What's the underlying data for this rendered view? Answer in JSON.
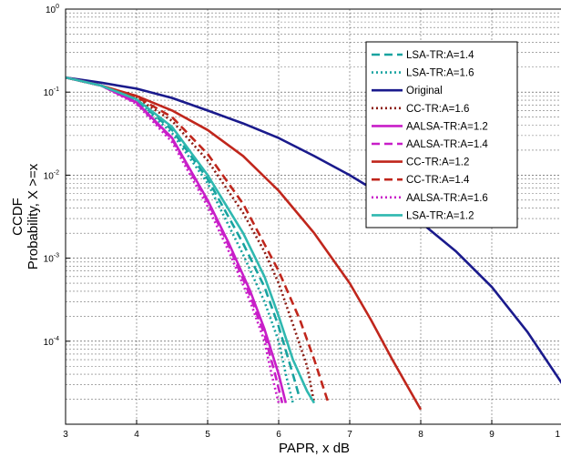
{
  "chart_data": {
    "type": "line",
    "title": "",
    "xlabel": "PAPR, x dB",
    "ylabel": [
      "CCDF",
      "Probability, X >=x"
    ],
    "x_scale": "linear",
    "y_scale": "log",
    "xlim": [
      3,
      10
    ],
    "ylim": [
      1e-05,
      1
    ],
    "xticks": [
      "3",
      "4",
      "5",
      "6",
      "7",
      "8",
      "9",
      "1"
    ],
    "yticks": [
      {
        "base": "10",
        "exp": "0"
      },
      {
        "base": "10",
        "exp": "-1"
      },
      {
        "base": "10",
        "exp": "-2"
      },
      {
        "base": "10",
        "exp": "-3"
      },
      {
        "base": "10",
        "exp": "-4"
      }
    ],
    "grid": true,
    "legend_position": "top-right",
    "series": [
      {
        "name": "LSA-TR:A=1.4",
        "color": "#18a3a0",
        "dash": "dashed",
        "x": [
          3.0,
          3.5,
          4.0,
          4.5,
          5.0,
          5.5,
          5.8,
          6.0,
          6.2,
          6.3
        ],
        "y": [
          0.15,
          0.12,
          0.08,
          0.035,
          0.009,
          0.0015,
          0.00045,
          0.00015,
          4e-05,
          2e-05
        ]
      },
      {
        "name": "LSA-TR:A=1.6",
        "color": "#18a3a0",
        "dash": "dotted",
        "x": [
          3.0,
          3.5,
          4.0,
          4.5,
          5.0,
          5.5,
          5.8,
          6.0,
          6.1,
          6.2
        ],
        "y": [
          0.15,
          0.12,
          0.078,
          0.032,
          0.008,
          0.0011,
          0.0003,
          0.0001,
          4e-05,
          1.8e-05
        ]
      },
      {
        "name": "Original",
        "color": "#1a1a8c",
        "dash": "solid",
        "x": [
          3.0,
          3.5,
          4.0,
          4.5,
          5.0,
          5.5,
          6.0,
          6.5,
          7.0,
          7.5,
          8.0,
          8.5,
          9.0,
          9.5,
          10.0
        ],
        "y": [
          0.15,
          0.13,
          0.11,
          0.085,
          0.06,
          0.042,
          0.028,
          0.017,
          0.01,
          0.0055,
          0.0027,
          0.0012,
          0.00045,
          0.00013,
          3e-05
        ]
      },
      {
        "name": "CC-TR:A=1.6",
        "color": "#8b1a12",
        "dash": "dotted",
        "x": [
          3.0,
          3.5,
          4.0,
          4.5,
          5.0,
          5.5,
          5.8,
          6.0,
          6.2,
          6.4,
          6.5
        ],
        "y": [
          0.15,
          0.12,
          0.085,
          0.045,
          0.015,
          0.0035,
          0.0012,
          0.0005,
          0.00016,
          5e-05,
          1.8e-05
        ]
      },
      {
        "name": "AALSA-TR:A=1.2",
        "color": "#c81ec8",
        "dash": "solid",
        "x": [
          3.0,
          3.5,
          4.0,
          4.5,
          5.0,
          5.3,
          5.6,
          5.8,
          6.0,
          6.1
        ],
        "y": [
          0.15,
          0.12,
          0.075,
          0.028,
          0.005,
          0.0015,
          0.0004,
          0.00014,
          4e-05,
          1.8e-05
        ]
      },
      {
        "name": "AALSA-TR:A=1.4",
        "color": "#c81ec8",
        "dash": "dashed",
        "x": [
          3.0,
          3.5,
          4.0,
          4.5,
          5.0,
          5.3,
          5.6,
          5.8,
          5.95,
          6.05
        ],
        "y": [
          0.15,
          0.12,
          0.074,
          0.027,
          0.0048,
          0.0014,
          0.00035,
          0.00012,
          4e-05,
          1.8e-05
        ]
      },
      {
        "name": "CC-TR:A=1.2",
        "color": "#c0261c",
        "dash": "solid",
        "x": [
          3.0,
          3.5,
          4.0,
          4.5,
          5.0,
          5.5,
          6.0,
          6.5,
          7.0,
          7.3,
          7.6,
          7.8,
          8.0
        ],
        "y": [
          0.15,
          0.12,
          0.09,
          0.06,
          0.035,
          0.017,
          0.0065,
          0.002,
          0.0005,
          0.00018,
          6e-05,
          3e-05,
          1.5e-05
        ]
      },
      {
        "name": "CC-TR:A=1.4",
        "color": "#c0261c",
        "dash": "dashed",
        "x": [
          3.0,
          3.5,
          4.0,
          4.5,
          5.0,
          5.5,
          6.0,
          6.3,
          6.5,
          6.7
        ],
        "y": [
          0.15,
          0.12,
          0.088,
          0.05,
          0.018,
          0.0045,
          0.0007,
          0.00018,
          6e-05,
          1.8e-05
        ]
      },
      {
        "name": "AALSA-TR:A=1.6",
        "color": "#c81ec8",
        "dash": "dotted",
        "x": [
          3.0,
          3.5,
          4.0,
          4.5,
          5.0,
          5.3,
          5.6,
          5.8,
          5.9,
          6.0
        ],
        "y": [
          0.15,
          0.12,
          0.072,
          0.025,
          0.0042,
          0.0012,
          0.0003,
          0.0001,
          4e-05,
          1.8e-05
        ]
      },
      {
        "name": "LSA-TR:A=1.2",
        "color": "#2fb8b0",
        "dash": "solid",
        "x": [
          3.0,
          3.5,
          4.0,
          4.5,
          5.0,
          5.5,
          5.8,
          6.0,
          6.2,
          6.4,
          6.5
        ],
        "y": [
          0.15,
          0.12,
          0.082,
          0.038,
          0.01,
          0.002,
          0.0006,
          0.0002,
          6e-05,
          2.5e-05,
          1.8e-05
        ]
      }
    ]
  }
}
